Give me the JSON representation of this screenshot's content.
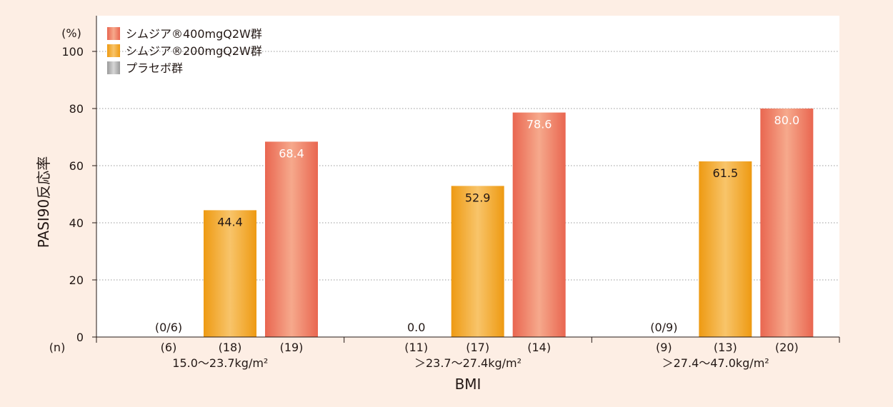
{
  "chart_data": {
    "type": "bar",
    "ylabel": "PASI90反応率",
    "yunit": "(%)",
    "xlabel": "BMI",
    "n_label": "(n)",
    "ylim": [
      0,
      100
    ],
    "yticks": [
      0,
      20,
      40,
      60,
      80,
      100
    ],
    "legend_position": "top-left",
    "categories": [
      "15.0～23.7kg/m²",
      "＞23.7～27.4kg/m²",
      "＞27.4～47.0kg/m²"
    ],
    "series": [
      {
        "name": "プラセボ群",
        "color": "#a8a8a8",
        "values": [
          0,
          0,
          0
        ],
        "labels": [
          "(0/6)",
          "0.0",
          "(0/9)"
        ],
        "n": [
          "(6)",
          "(11)",
          "(9)"
        ]
      },
      {
        "name": "シムジア®200mgQ2W群",
        "color": "#f0a21c",
        "values": [
          44.4,
          52.9,
          61.5
        ],
        "labels": [
          "44.4",
          "52.9",
          "61.5"
        ],
        "n": [
          "(18)",
          "(17)",
          "(13)"
        ]
      },
      {
        "name": "シムジア®400mgQ2W群",
        "color": "#ec6f5c",
        "values": [
          68.4,
          78.6,
          80.0
        ],
        "labels": [
          "68.4",
          "78.6",
          "80.0"
        ],
        "n": [
          "(19)",
          "(14)",
          "(20)"
        ]
      }
    ],
    "legend_order": [
      2,
      1,
      0
    ]
  }
}
